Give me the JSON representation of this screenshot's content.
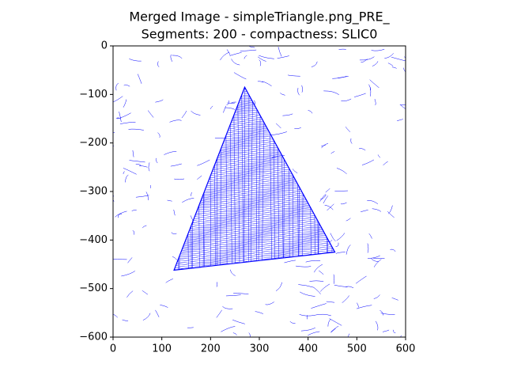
{
  "chart_data": {
    "type": "image",
    "title": [
      "Merged Image - simpleTriangle.png_PRE_",
      "Segments: 200 - compactness: SLIC0"
    ],
    "color": "#0000ff",
    "xlim": [
      0,
      600
    ],
    "xticks": [
      0,
      100,
      200,
      300,
      400,
      500,
      600
    ],
    "ylim": [
      -600,
      0
    ],
    "yticks": [
      0,
      {
        "value": -100,
        "label": "−100"
      },
      {
        "value": -200,
        "label": "−200"
      },
      {
        "value": -300,
        "label": "−300"
      },
      {
        "value": -400,
        "label": "−400"
      },
      {
        "value": -500,
        "label": "−500"
      },
      {
        "value": -600,
        "label": "−600"
      }
    ]
  }
}
